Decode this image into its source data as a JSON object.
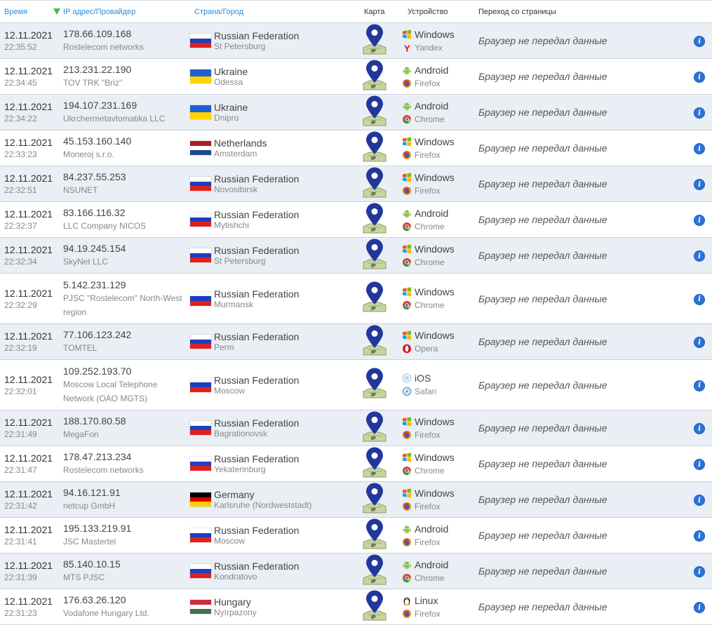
{
  "header": {
    "time": "Время",
    "ip": "IP адрес/Провайдер",
    "geo": "Страна/Город",
    "map": "Карта",
    "device": "Устройство",
    "referer": "Переход со страницы"
  },
  "colors": {
    "header_link": "#2b8bd9",
    "row_alt": "#e9eff4",
    "pin": "#22379a",
    "info": "#2b73d6"
  },
  "rows": [
    {
      "date": "12.11.2021",
      "time": "22:35:52",
      "ip": "178.66.109.168",
      "provider": "Rostelecom networks",
      "country": "Russian Federation",
      "city": "St Petersburg",
      "flag": "ru",
      "os": "Windows",
      "os_icon": "windows-icon",
      "browser": "Yandex",
      "browser_icon": "yandex-icon",
      "referer": "Браузер не передал данные"
    },
    {
      "date": "12.11.2021",
      "time": "22:34:45",
      "ip": "213.231.22.190",
      "provider": "TOV TRK \"Briz\"",
      "country": "Ukraine",
      "city": "Odessa",
      "flag": "ua",
      "os": "Android",
      "os_icon": "android-icon",
      "browser": "Firefox",
      "browser_icon": "firefox-icon",
      "referer": "Браузер не передал данные"
    },
    {
      "date": "12.11.2021",
      "time": "22:34:22",
      "ip": "194.107.231.169",
      "provider": "Ukrchermetavtomatika LLC",
      "country": "Ukraine",
      "city": "Dnipro",
      "flag": "ua",
      "os": "Android",
      "os_icon": "android-icon",
      "browser": "Chrome",
      "browser_icon": "chrome-icon",
      "referer": "Браузер не передал данные"
    },
    {
      "date": "12.11.2021",
      "time": "22:33:23",
      "ip": "45.153.160.140",
      "provider": "Moneroj s.r.o.",
      "country": "Netherlands",
      "city": "Amsterdam",
      "flag": "nl",
      "os": "Windows",
      "os_icon": "windows-icon",
      "browser": "Firefox",
      "browser_icon": "firefox-icon",
      "referer": "Браузер не передал данные"
    },
    {
      "date": "12.11.2021",
      "time": "22:32:51",
      "ip": "84.237.55.253",
      "provider": "NSUNET",
      "country": "Russian Federation",
      "city": "Novosibirsk",
      "flag": "ru",
      "os": "Windows",
      "os_icon": "windows-icon",
      "browser": "Firefox",
      "browser_icon": "firefox-icon",
      "referer": "Браузер не передал данные"
    },
    {
      "date": "12.11.2021",
      "time": "22:32:37",
      "ip": "83.166.116.32",
      "provider": "LLC Company NICOS",
      "country": "Russian Federation",
      "city": "Mytishchi",
      "flag": "ru",
      "os": "Android",
      "os_icon": "android-icon",
      "browser": "Chrome",
      "browser_icon": "chrome-icon",
      "referer": "Браузер не передал данные"
    },
    {
      "date": "12.11.2021",
      "time": "22:32:34",
      "ip": "94.19.245.154",
      "provider": "SkyNet LLC",
      "country": "Russian Federation",
      "city": "St Petersburg",
      "flag": "ru",
      "os": "Windows",
      "os_icon": "windows-icon",
      "browser": "Chrome",
      "browser_icon": "chrome-icon",
      "referer": "Браузер не передал данные"
    },
    {
      "date": "12.11.2021",
      "time": "22:32:29",
      "ip": "5.142.231.129",
      "provider": "PJSC \"Rostelecom\" North-West region",
      "country": "Russian Federation",
      "city": "Murmansk",
      "flag": "ru",
      "os": "Windows",
      "os_icon": "windows-icon",
      "browser": "Chrome",
      "browser_icon": "chrome-icon",
      "referer": "Браузер не передал данные"
    },
    {
      "date": "12.11.2021",
      "time": "22:32:19",
      "ip": "77.106.123.242",
      "provider": "TOMTEL",
      "country": "Russian Federation",
      "city": "Perm",
      "flag": "ru",
      "os": "Windows",
      "os_icon": "windows-icon",
      "browser": "Opera",
      "browser_icon": "opera-icon",
      "referer": "Браузер не передал данные"
    },
    {
      "date": "12.11.2021",
      "time": "22:32:01",
      "ip": "109.252.193.70",
      "provider": "Moscow Local Telephone Network (OAO MGTS)",
      "country": "Russian Federation",
      "city": "Moscow",
      "flag": "ru",
      "os": "iOS",
      "os_icon": "ios-icon",
      "browser": "Safari",
      "browser_icon": "safari-icon",
      "referer": "Браузер не передал данные"
    },
    {
      "date": "12.11.2021",
      "time": "22:31:49",
      "ip": "188.170.80.58",
      "provider": "MegaFon",
      "country": "Russian Federation",
      "city": "Bagrationovsk",
      "flag": "ru",
      "os": "Windows",
      "os_icon": "windows-icon",
      "browser": "Firefox",
      "browser_icon": "firefox-icon",
      "referer": "Браузер не передал данные"
    },
    {
      "date": "12.11.2021",
      "time": "22:31:47",
      "ip": "178.47.213.234",
      "provider": "Rostelecom networks",
      "country": "Russian Federation",
      "city": "Yekaterinburg",
      "flag": "ru",
      "os": "Windows",
      "os_icon": "windows-icon",
      "browser": "Chrome",
      "browser_icon": "chrome-icon",
      "referer": "Браузер не передал данные"
    },
    {
      "date": "12.11.2021",
      "time": "22:31:42",
      "ip": "94.16.121.91",
      "provider": "netcup GmbH",
      "country": "Germany",
      "city": "Karlsruhe (Nordweststadt)",
      "flag": "de",
      "os": "Windows",
      "os_icon": "windows-icon",
      "browser": "Firefox",
      "browser_icon": "firefox-icon",
      "referer": "Браузер не передал данные"
    },
    {
      "date": "12.11.2021",
      "time": "22:31:41",
      "ip": "195.133.219.91",
      "provider": "JSC Mastertel",
      "country": "Russian Federation",
      "city": "Moscow",
      "flag": "ru",
      "os": "Android",
      "os_icon": "android-icon",
      "browser": "Firefox",
      "browser_icon": "firefox-icon",
      "referer": "Браузер не передал данные"
    },
    {
      "date": "12.11.2021",
      "time": "22:31:39",
      "ip": "85.140.10.15",
      "provider": "MTS PJSC",
      "country": "Russian Federation",
      "city": "Kondratovo",
      "flag": "ru",
      "os": "Android",
      "os_icon": "android-icon",
      "browser": "Chrome",
      "browser_icon": "chrome-icon",
      "referer": "Браузер не передал данные"
    },
    {
      "date": "12.11.2021",
      "time": "22:31:23",
      "ip": "176.63.26.120",
      "provider": "Vodafone Hungary Ltd.",
      "country": "Hungary",
      "city": "Nyírpazony",
      "flag": "hu",
      "os": "Linux",
      "os_icon": "linux-icon",
      "browser": "Firefox",
      "browser_icon": "firefox-icon",
      "referer": "Браузер не передал данные"
    }
  ]
}
